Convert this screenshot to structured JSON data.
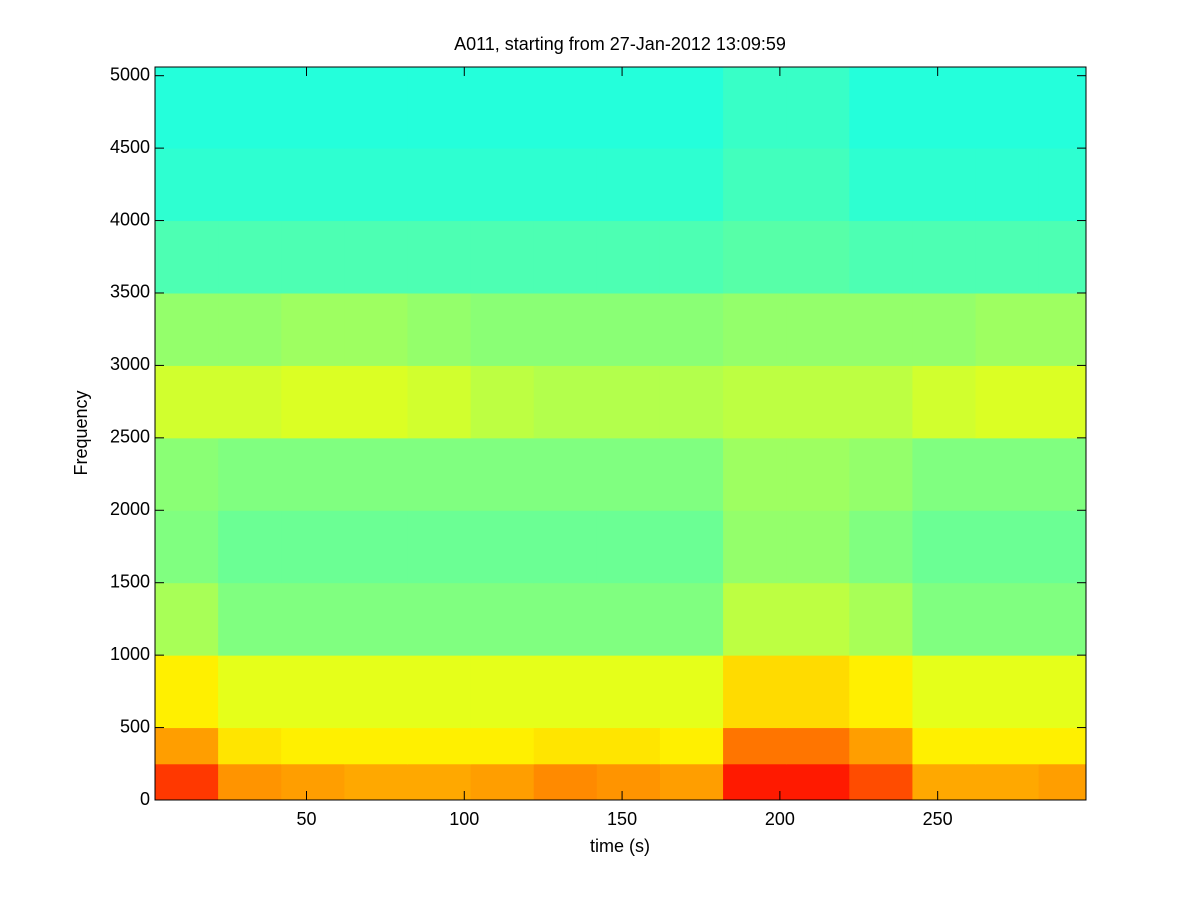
{
  "chart_data": {
    "type": "heatmap",
    "title": "A011, starting from 27-Jan-2012 13:09:59",
    "x_label": "time (s)",
    "y_label": "Frequency",
    "colormap": "jet",
    "clim": [
      0,
      1
    ],
    "xbins": [
      2,
      22,
      42,
      62,
      82,
      102,
      122,
      142,
      162,
      182,
      202,
      222,
      242,
      262,
      282,
      297
    ],
    "ybins": [
      0,
      250,
      500,
      1000,
      1500,
      2000,
      2500,
      3000,
      3500,
      4000,
      4500,
      5060
    ],
    "z": [
      [
        0.82,
        0.73,
        0.72,
        0.71,
        0.71,
        0.72,
        0.74,
        0.73,
        0.72,
        0.85,
        0.85,
        0.8,
        0.71,
        0.71,
        0.72
      ],
      [
        0.72,
        0.65,
        0.64,
        0.64,
        0.64,
        0.64,
        0.65,
        0.65,
        0.64,
        0.76,
        0.76,
        0.72,
        0.64,
        0.64,
        0.64
      ],
      [
        0.64,
        0.6,
        0.6,
        0.6,
        0.6,
        0.6,
        0.6,
        0.6,
        0.6,
        0.66,
        0.66,
        0.64,
        0.6,
        0.6,
        0.6
      ],
      [
        0.54,
        0.5,
        0.5,
        0.5,
        0.5,
        0.5,
        0.5,
        0.5,
        0.5,
        0.56,
        0.56,
        0.54,
        0.5,
        0.5,
        0.5
      ],
      [
        0.5,
        0.48,
        0.48,
        0.48,
        0.48,
        0.48,
        0.48,
        0.48,
        0.48,
        0.52,
        0.52,
        0.5,
        0.48,
        0.48,
        0.48
      ],
      [
        0.51,
        0.5,
        0.5,
        0.5,
        0.5,
        0.5,
        0.5,
        0.5,
        0.5,
        0.53,
        0.53,
        0.52,
        0.5,
        0.5,
        0.5
      ],
      [
        0.58,
        0.58,
        0.59,
        0.59,
        0.58,
        0.56,
        0.55,
        0.55,
        0.55,
        0.56,
        0.56,
        0.56,
        0.58,
        0.59,
        0.59
      ],
      [
        0.52,
        0.52,
        0.53,
        0.53,
        0.52,
        0.51,
        0.51,
        0.51,
        0.51,
        0.52,
        0.52,
        0.52,
        0.52,
        0.53,
        0.53
      ],
      [
        0.45,
        0.45,
        0.45,
        0.45,
        0.45,
        0.45,
        0.45,
        0.45,
        0.45,
        0.46,
        0.46,
        0.45,
        0.45,
        0.45,
        0.45
      ],
      [
        0.42,
        0.42,
        0.42,
        0.42,
        0.42,
        0.42,
        0.42,
        0.42,
        0.42,
        0.44,
        0.44,
        0.42,
        0.42,
        0.42,
        0.42
      ],
      [
        0.41,
        0.41,
        0.41,
        0.41,
        0.41,
        0.41,
        0.41,
        0.41,
        0.41,
        0.43,
        0.43,
        0.41,
        0.41,
        0.41,
        0.41
      ]
    ],
    "xlim": [
      2,
      297
    ],
    "ylim": [
      0,
      5060
    ],
    "xticks": [
      50,
      100,
      150,
      200,
      250
    ],
    "yticks": [
      0,
      500,
      1000,
      1500,
      2000,
      2500,
      3000,
      3500,
      4000,
      4500,
      5000
    ]
  }
}
